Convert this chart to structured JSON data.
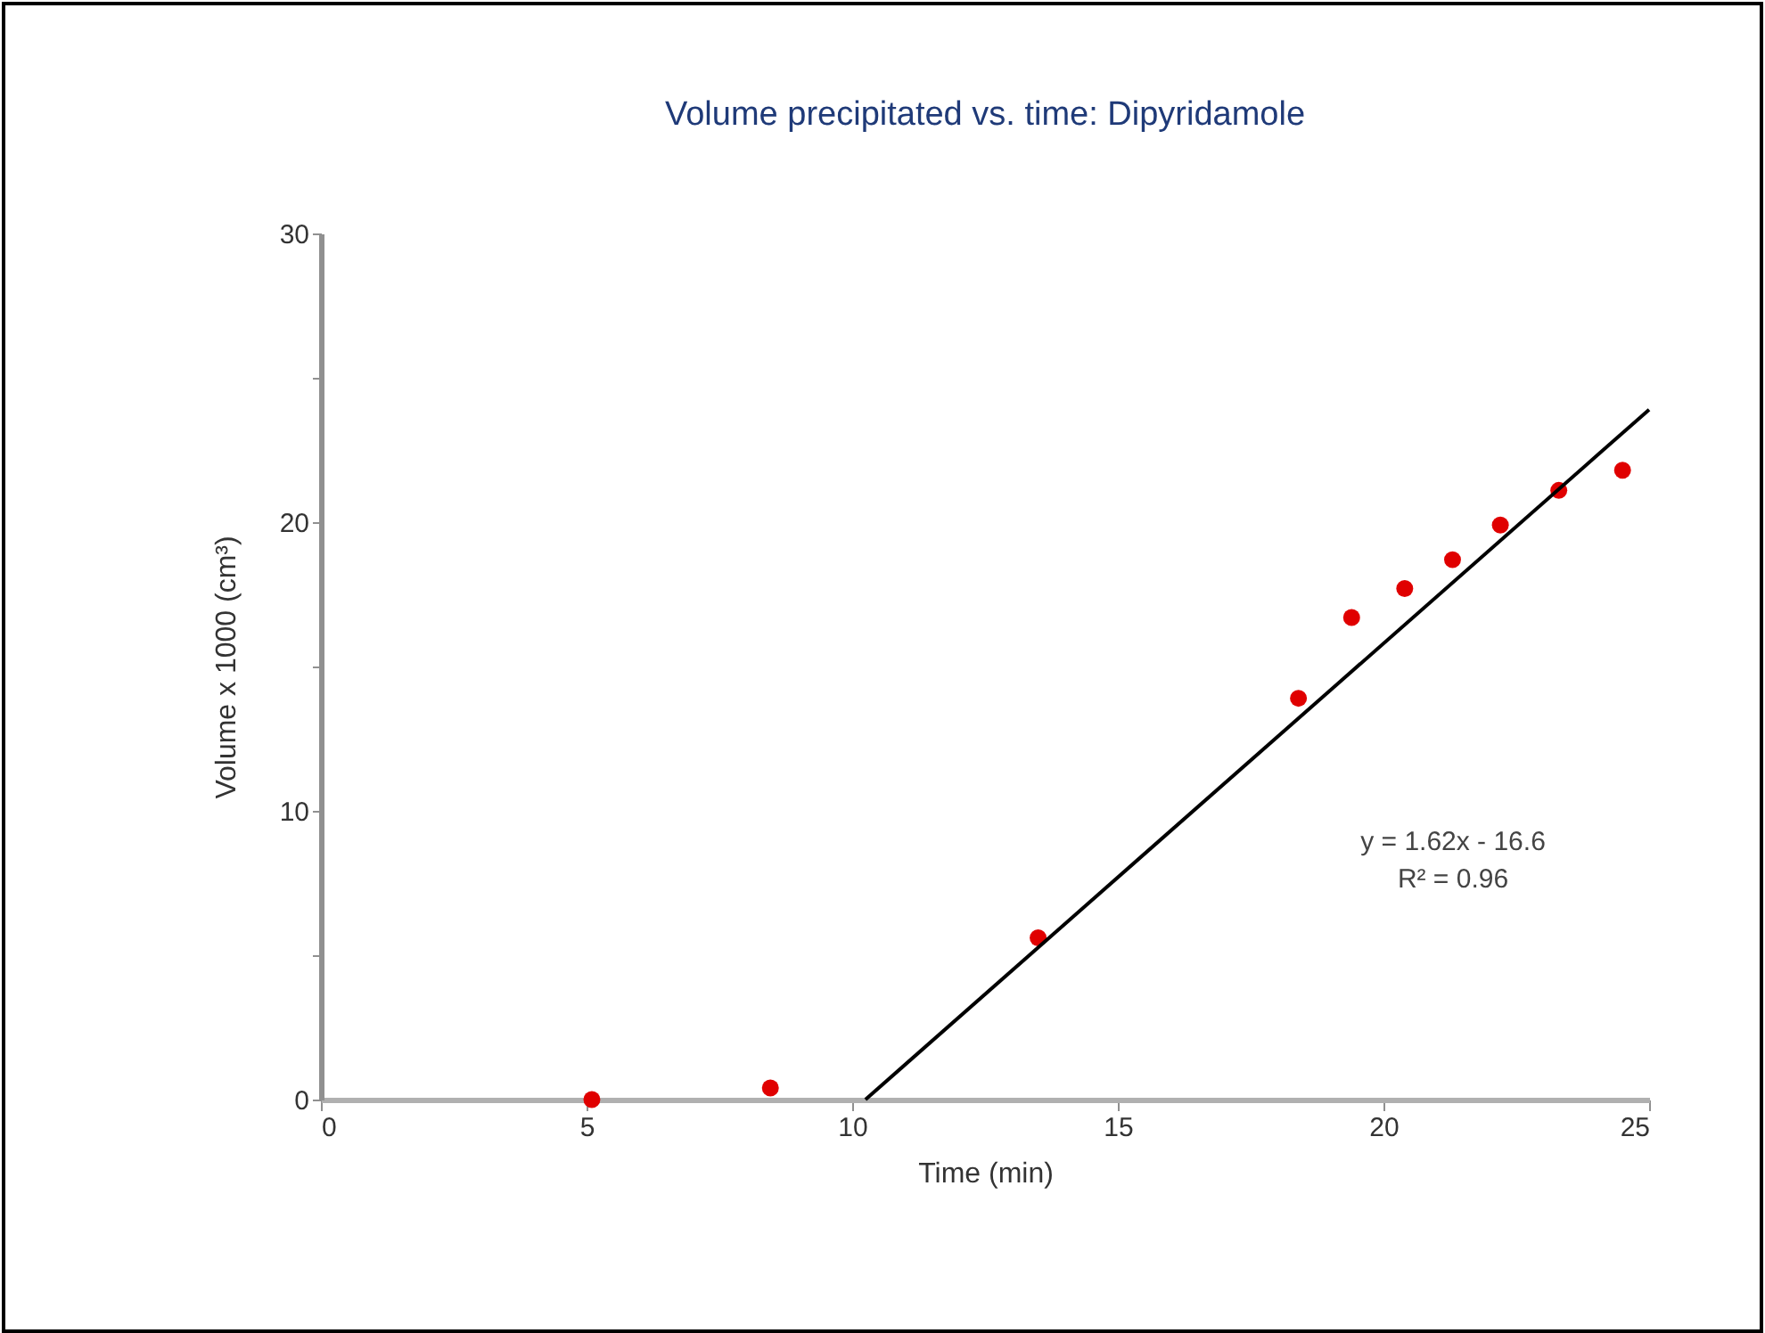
{
  "chart_data": {
    "type": "scatter",
    "title": "Volume precipitated vs. time: Dipyridamole",
    "xlabel": "Time (min)",
    "ylabel": "Volume x 1000 (cm³)",
    "annotations": [
      "y = 1.62x - 16.6",
      "R² = 0.96"
    ],
    "series": [
      {
        "marker": "circle",
        "color": "#e00000",
        "x": [
          5.1,
          8.46,
          13.5,
          18.4,
          19.4,
          20.4,
          21.3,
          22.2,
          23.3,
          24.5
        ],
        "values": [
          0,
          0.4,
          5.6,
          13.9,
          16.7,
          17.7,
          18.7,
          19.9,
          21.1,
          21.8
        ]
      },
      {
        "type": "line",
        "color": "#000000",
        "x": [
          10.25,
          25
        ],
        "values": [
          0,
          23.9
        ]
      }
    ],
    "xlim": [
      0,
      25
    ],
    "xticks": [
      0,
      5,
      10,
      15,
      20,
      25
    ],
    "ylim": [
      0,
      30
    ],
    "yticks": [
      0,
      {
        "value": 5,
        "label": null
      },
      10,
      {
        "value": 15,
        "label": null
      },
      20,
      {
        "value": 25,
        "label": null
      },
      30
    ],
    "grid": false,
    "legend": false
  }
}
